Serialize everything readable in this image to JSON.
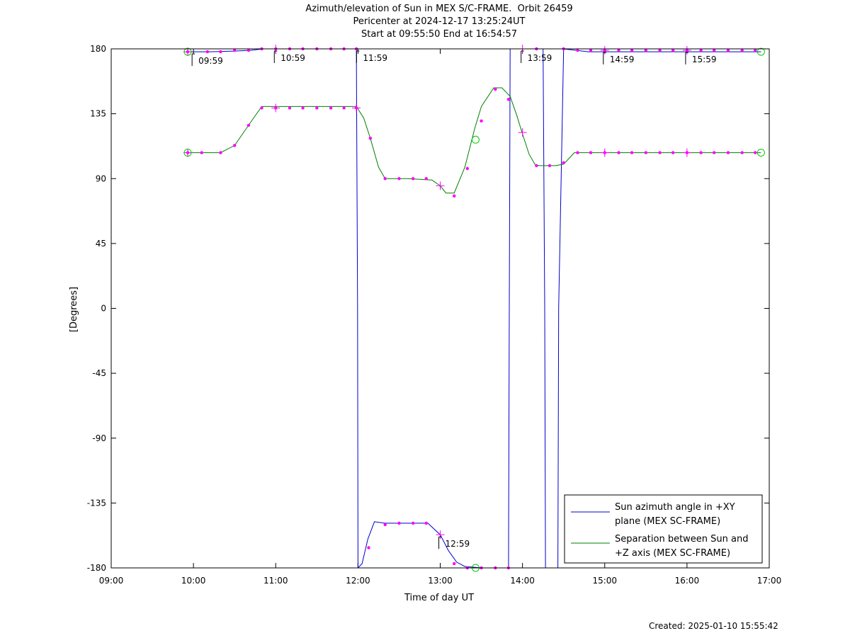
{
  "title_lines": [
    "Azimuth/elevation of Sun in MEX S/C-FRAME.  Orbit 26459",
    "Pericenter at 2024-12-17 13:25:24UT",
    "Start at 09:55:50 End at 16:54:57"
  ],
  "footer": "Created: 2025-01-10 15:55:42",
  "chart_data": {
    "type": "line",
    "xlabel": "Time of day UT",
    "ylabel": "[Degrees]",
    "xlim": [
      9.0,
      17.0
    ],
    "ylim": [
      -180,
      180
    ],
    "x_ticks": [
      "09:00",
      "10:00",
      "11:00",
      "12:00",
      "13:00",
      "14:00",
      "15:00",
      "16:00",
      "17:00"
    ],
    "y_ticks": [
      180,
      135,
      90,
      45,
      0,
      -45,
      -90,
      -135,
      -180
    ],
    "legend_position": "bottom-right",
    "series": [
      {
        "name": "Sun azimuth angle in +XY plane (MEX SC-FRAME)",
        "legend_lines": [
          "Sun azimuth angle in +XY",
          "plane (MEX SC-FRAME)"
        ],
        "color": "#0000cc",
        "x": [
          9.93,
          10.2,
          10.5,
          10.7,
          10.85,
          11.2,
          11.6,
          11.98,
          11.995,
          12.0,
          12.05,
          12.12,
          12.2,
          12.33,
          12.5,
          12.7,
          12.85,
          13.0,
          13.1,
          13.2,
          13.3,
          13.5,
          13.7,
          13.83,
          13.84,
          13.85,
          13.9,
          14.0,
          14.1,
          14.25,
          14.27,
          14.28,
          14.32,
          14.4,
          14.43,
          14.44,
          14.5,
          14.8,
          15.5,
          16.9
        ],
        "y": [
          178,
          178,
          178.5,
          179,
          180,
          180,
          180,
          180,
          0,
          -180,
          -177,
          -160,
          -148,
          -149,
          -149,
          -149,
          -149,
          -157,
          -168,
          -176,
          -179,
          -180,
          -180,
          -180,
          0,
          180,
          180,
          180,
          180,
          180,
          0,
          -180,
          -180,
          -180,
          -180,
          0,
          180,
          178,
          178,
          178
        ]
      },
      {
        "name": "Separation between Sun and +Z axis (MEX SC-FRAME)",
        "legend_lines": [
          "Separation between Sun and",
          "+Z axis (MEX SC-FRAME)"
        ],
        "color": "#008000",
        "x": [
          9.93,
          10.1,
          10.33,
          10.5,
          10.67,
          10.83,
          11.0,
          11.5,
          11.98,
          12.07,
          12.15,
          12.25,
          12.33,
          12.6,
          12.9,
          13.0,
          13.07,
          13.17,
          13.3,
          13.42,
          13.5,
          13.65,
          13.75,
          13.85,
          13.93,
          14.0,
          14.08,
          14.15,
          14.2,
          14.4,
          14.5,
          14.63,
          15.0,
          16.0,
          16.9
        ],
        "y": [
          108,
          108,
          108,
          113,
          127,
          140,
          140,
          140,
          140,
          132,
          118,
          98,
          90,
          90,
          89,
          85,
          80,
          80,
          98,
          125,
          140,
          153,
          153,
          147,
          134,
          121,
          107,
          100,
          99,
          99,
          100,
          108,
          108,
          108,
          108
        ]
      }
    ],
    "markers": {
      "color": "#ff00ff",
      "dots": [
        [
          9.93,
          108
        ],
        [
          10.1,
          108
        ],
        [
          10.33,
          108
        ],
        [
          10.5,
          113
        ],
        [
          10.67,
          127
        ],
        [
          10.83,
          139
        ],
        [
          11.0,
          139
        ],
        [
          11.17,
          139
        ],
        [
          11.33,
          139
        ],
        [
          11.5,
          139
        ],
        [
          11.67,
          139
        ],
        [
          11.83,
          139
        ],
        [
          11.98,
          139
        ],
        [
          12.15,
          118
        ],
        [
          12.33,
          90
        ],
        [
          12.5,
          90
        ],
        [
          12.67,
          90
        ],
        [
          12.83,
          90
        ],
        [
          13.17,
          78
        ],
        [
          13.33,
          97
        ],
        [
          13.5,
          130
        ],
        [
          13.67,
          152
        ],
        [
          13.83,
          145
        ],
        [
          14.17,
          99
        ],
        [
          14.33,
          99
        ],
        [
          14.5,
          101
        ],
        [
          14.67,
          108
        ],
        [
          14.83,
          108
        ],
        [
          15.0,
          108
        ],
        [
          15.17,
          108
        ],
        [
          15.33,
          108
        ],
        [
          15.5,
          108
        ],
        [
          15.67,
          108
        ],
        [
          15.83,
          108
        ],
        [
          16.0,
          108
        ],
        [
          16.17,
          108
        ],
        [
          16.33,
          108
        ],
        [
          16.5,
          108
        ],
        [
          16.67,
          108
        ],
        [
          16.83,
          108
        ],
        [
          9.93,
          178
        ],
        [
          10.17,
          178
        ],
        [
          10.33,
          178
        ],
        [
          10.5,
          179
        ],
        [
          10.67,
          179
        ],
        [
          10.83,
          180
        ],
        [
          11.0,
          180
        ],
        [
          11.17,
          180
        ],
        [
          11.33,
          180
        ],
        [
          11.5,
          180
        ],
        [
          11.67,
          180
        ],
        [
          11.83,
          180
        ],
        [
          11.98,
          180
        ],
        [
          14.17,
          180
        ],
        [
          14.5,
          180
        ],
        [
          14.67,
          179
        ],
        [
          14.83,
          179
        ],
        [
          15.0,
          179
        ],
        [
          15.17,
          179
        ],
        [
          15.33,
          179
        ],
        [
          15.5,
          179
        ],
        [
          15.67,
          179
        ],
        [
          15.83,
          179
        ],
        [
          16.0,
          179
        ],
        [
          16.17,
          179
        ],
        [
          16.33,
          179
        ],
        [
          16.5,
          179
        ],
        [
          16.67,
          179
        ],
        [
          16.83,
          179
        ],
        [
          12.13,
          -166
        ],
        [
          12.33,
          -150
        ],
        [
          12.5,
          -149
        ],
        [
          12.67,
          -149
        ],
        [
          12.83,
          -149
        ],
        [
          13.17,
          -177
        ],
        [
          13.33,
          -180
        ],
        [
          13.5,
          -180
        ],
        [
          13.67,
          -180
        ],
        [
          13.83,
          -180
        ]
      ],
      "plus": [
        [
          9.93,
          108
        ],
        [
          11.0,
          139
        ],
        [
          11.98,
          139
        ],
        [
          13.0,
          85
        ],
        [
          14.0,
          122
        ],
        [
          15.0,
          108
        ],
        [
          16.0,
          108
        ],
        [
          9.93,
          178
        ],
        [
          11.0,
          180
        ],
        [
          14.0,
          180
        ],
        [
          15.0,
          179
        ],
        [
          16.0,
          179
        ],
        [
          13.0,
          -157
        ]
      ],
      "circle_color": "#00cc00",
      "circles": [
        [
          9.93,
          108
        ],
        [
          9.93,
          178
        ],
        [
          13.43,
          117
        ],
        [
          13.43,
          -180
        ],
        [
          16.9,
          108
        ],
        [
          16.9,
          178
        ]
      ]
    },
    "annotations": [
      {
        "label": "09:59",
        "x": 9.983,
        "y": 178
      },
      {
        "label": "10:59",
        "x": 10.983,
        "y": 180
      },
      {
        "label": "11:59",
        "x": 11.983,
        "y": 180
      },
      {
        "label": "12:59",
        "x": 12.983,
        "y": -157
      },
      {
        "label": "13:59",
        "x": 13.983,
        "y": 180
      },
      {
        "label": "14:59",
        "x": 14.983,
        "y": 179
      },
      {
        "label": "15:59",
        "x": 15.983,
        "y": 179
      }
    ]
  }
}
